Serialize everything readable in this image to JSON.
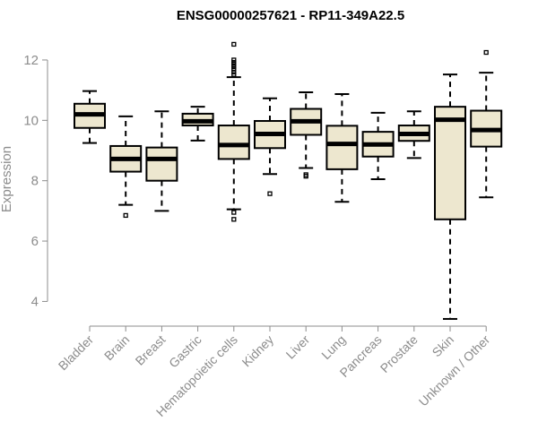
{
  "chart_data": {
    "type": "boxplot",
    "title": "ENSG00000257621 - RP11-349A22.5",
    "ylabel": "Expression",
    "xlabel": "",
    "ylim": [
      3.3,
      12.8
    ],
    "yticks": [
      4,
      6,
      8,
      10,
      12
    ],
    "box_fill": "#ede7cf",
    "categories": [
      "Bladder",
      "Brain",
      "Breast",
      "Gastric",
      "Hematopoietic cells",
      "Kidney",
      "Liver",
      "Lung",
      "Pancreas",
      "Prostate",
      "Skin",
      "Unknown / Other"
    ],
    "boxes": [
      {
        "min": 9.25,
        "q1": 9.75,
        "median": 10.2,
        "q3": 10.55,
        "max": 10.97,
        "outliers": []
      },
      {
        "min": 7.2,
        "q1": 8.3,
        "median": 8.72,
        "q3": 9.15,
        "max": 10.13,
        "outliers": [
          6.85
        ]
      },
      {
        "min": 7.0,
        "q1": 8.0,
        "median": 8.72,
        "q3": 9.1,
        "max": 10.3,
        "outliers": []
      },
      {
        "min": 9.33,
        "q1": 9.83,
        "median": 9.97,
        "q3": 10.22,
        "max": 10.45,
        "outliers": []
      },
      {
        "min": 7.05,
        "q1": 8.72,
        "median": 9.18,
        "q3": 9.83,
        "max": 11.43,
        "outliers": [
          12.52,
          12.0,
          11.92,
          11.85,
          11.78,
          11.7,
          11.6,
          11.52,
          6.95,
          6.72
        ]
      },
      {
        "min": 8.22,
        "q1": 9.08,
        "median": 9.55,
        "q3": 9.98,
        "max": 10.73,
        "outliers": [
          7.57
        ]
      },
      {
        "min": 8.42,
        "q1": 9.52,
        "median": 9.97,
        "q3": 10.38,
        "max": 10.93,
        "outliers": [
          8.2,
          8.15
        ]
      },
      {
        "min": 7.3,
        "q1": 8.38,
        "median": 9.22,
        "q3": 9.82,
        "max": 10.87,
        "outliers": []
      },
      {
        "min": 8.05,
        "q1": 8.8,
        "median": 9.2,
        "q3": 9.62,
        "max": 10.25,
        "outliers": []
      },
      {
        "min": 8.75,
        "q1": 9.32,
        "median": 9.55,
        "q3": 9.83,
        "max": 10.3,
        "outliers": []
      },
      {
        "min": 3.42,
        "q1": 6.72,
        "median": 10.02,
        "q3": 10.45,
        "max": 11.52,
        "outliers": []
      },
      {
        "min": 7.45,
        "q1": 9.13,
        "median": 9.68,
        "q3": 10.32,
        "max": 11.58,
        "outliers": [
          12.25
        ]
      }
    ]
  }
}
